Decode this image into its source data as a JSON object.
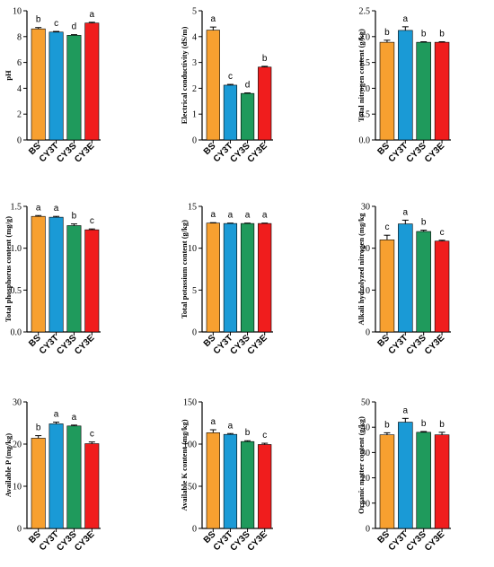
{
  "colors": {
    "BS": "#f7a030",
    "CY3T": "#1a9ad6",
    "CY3S": "#1f9a5c",
    "CY3E": "#f01d1d"
  },
  "chart_data": [
    {
      "type": "bar",
      "id": "ph",
      "ylabel": "pH",
      "ylim": [
        0,
        10
      ],
      "yticks": [
        "0",
        "2",
        "4",
        "6",
        "8",
        "10"
      ],
      "categories": [
        "BS",
        "CY3T",
        "CY3S",
        "CY3E"
      ],
      "values": [
        8.6,
        8.35,
        8.1,
        9.05
      ],
      "errors": [
        0.1,
        0.05,
        0.05,
        0.06
      ],
      "letters": [
        "b",
        "c",
        "d",
        "a"
      ]
    },
    {
      "type": "bar",
      "id": "ec",
      "ylabel": "Electrical conductivity (dS/m)",
      "ylim": [
        0,
        5
      ],
      "yticks": [
        "0",
        "1",
        "2",
        "3",
        "4",
        "5"
      ],
      "categories": [
        "BS",
        "CY3T",
        "CY3S",
        "CY3E"
      ],
      "values": [
        4.25,
        2.12,
        1.8,
        2.82
      ],
      "errors": [
        0.12,
        0.03,
        0.02,
        0.03
      ],
      "letters": [
        "a",
        "c",
        "d",
        "b"
      ]
    },
    {
      "type": "bar",
      "id": "tn",
      "ylabel": "Total nitrogen content (g/kg)",
      "ylim": [
        0,
        2.5
      ],
      "yticks": [
        "0.0",
        "0.5",
        "1.0",
        "1.5",
        "2.0",
        "2.5"
      ],
      "categories": [
        "BS",
        "CY3T",
        "CY3S",
        "CY3E"
      ],
      "values": [
        1.89,
        2.12,
        1.89,
        1.89
      ],
      "errors": [
        0.04,
        0.07,
        0.01,
        0.01
      ],
      "letters": [
        "b",
        "a",
        "b",
        "b"
      ]
    },
    {
      "type": "bar",
      "id": "tp",
      "ylabel": "Total phosphorus content (mg/g)",
      "ylim": [
        0,
        1.5
      ],
      "yticks": [
        "0.0",
        "0.5",
        "1.0",
        "1.5"
      ],
      "categories": [
        "BS",
        "CY3T",
        "CY3S",
        "CY3E"
      ],
      "values": [
        1.38,
        1.37,
        1.27,
        1.22
      ],
      "errors": [
        0.01,
        0.01,
        0.02,
        0.01
      ],
      "letters": [
        "a",
        "a",
        "b",
        "c"
      ]
    },
    {
      "type": "bar",
      "id": "tk",
      "ylabel": "Total potassium content (g/kg)",
      "ylim": [
        0,
        15
      ],
      "yticks": [
        "0",
        "5",
        "10",
        "15"
      ],
      "categories": [
        "BS",
        "CY3T",
        "CY3S",
        "CY3E"
      ],
      "values": [
        13.0,
        12.95,
        12.95,
        12.95
      ],
      "errors": [
        0.05,
        0.05,
        0.05,
        0.05
      ],
      "letters": [
        "a",
        "a",
        "a",
        "a"
      ]
    },
    {
      "type": "bar",
      "id": "ahn",
      "ylabel": "Alkali hydrolyzed nitrogen (mg/kg",
      "ylim": [
        0,
        30
      ],
      "yticks": [
        "0",
        "10",
        "20",
        "30"
      ],
      "categories": [
        "BS",
        "CY3T",
        "CY3S",
        "CY3E"
      ],
      "values": [
        22.0,
        25.8,
        24.0,
        21.7
      ],
      "errors": [
        1.1,
        0.9,
        0.3,
        0.2
      ],
      "letters": [
        "c",
        "a",
        "b",
        "c"
      ]
    },
    {
      "type": "bar",
      "id": "ap",
      "ylabel": "Available P (mg/kg)",
      "ylim": [
        0,
        30
      ],
      "yticks": [
        "0",
        "10",
        "20",
        "30"
      ],
      "categories": [
        "BS",
        "CY3T",
        "CY3S",
        "CY3E"
      ],
      "values": [
        21.4,
        24.8,
        24.3,
        20.1
      ],
      "errors": [
        0.6,
        0.4,
        0.2,
        0.4
      ],
      "letters": [
        "b",
        "a",
        "a",
        "c"
      ]
    },
    {
      "type": "bar",
      "id": "ak",
      "ylabel": "Available K content  (mg/kg)",
      "ylim": [
        0,
        150
      ],
      "yticks": [
        "0",
        "50",
        "100",
        "150"
      ],
      "categories": [
        "BS",
        "CY3T",
        "CY3S",
        "CY3E"
      ],
      "values": [
        113.5,
        111.5,
        103.0,
        99.5
      ],
      "errors": [
        3.5,
        1.0,
        1.0,
        1.5
      ],
      "letters": [
        "a",
        "a",
        "b",
        "c"
      ]
    },
    {
      "type": "bar",
      "id": "om",
      "ylabel": "Organic matter content  (g/kg)",
      "ylim": [
        0,
        50
      ],
      "yticks": [
        "0",
        "10",
        "20",
        "30",
        "40",
        "50"
      ],
      "categories": [
        "BS",
        "CY3T",
        "CY3S",
        "CY3E"
      ],
      "values": [
        37.0,
        42.0,
        38.0,
        37.0
      ],
      "errors": [
        0.8,
        1.5,
        0.3,
        1.0
      ],
      "letters": [
        "b",
        "a",
        "b",
        "b"
      ]
    }
  ]
}
